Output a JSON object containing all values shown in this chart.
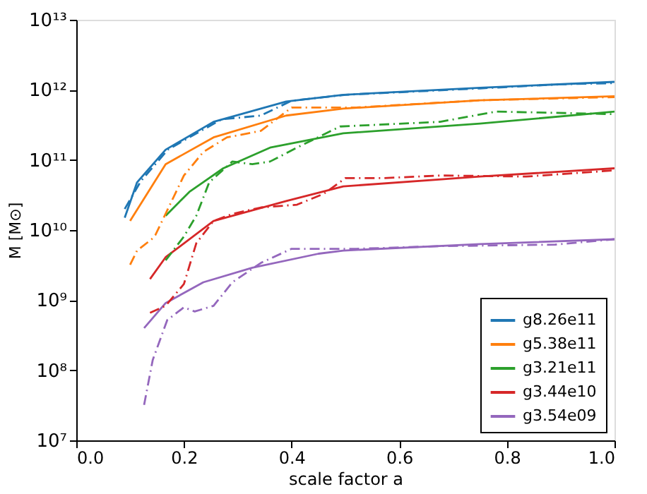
{
  "chart_data": {
    "type": "line",
    "xlabel": "scale factor a",
    "ylabel": "M [M⊙]",
    "log": "y",
    "grid": false,
    "legend": "bottom right",
    "marker": "none",
    "xlim": [
      0.0,
      1.0
    ],
    "xticks": [
      {
        "value": 0,
        "label": "0.0"
      },
      0.2,
      0.4,
      0.6,
      0.8,
      {
        "value": 1,
        "label": "1.0"
      }
    ],
    "ylim": [
      10000000.0,
      10000000000000.0
    ],
    "yticks": [
      {
        "value": 10000000.0,
        "label": "10⁷"
      },
      {
        "value": 100000000.0,
        "label": "10⁸"
      },
      {
        "value": 1000000000.0,
        "label": "10⁹"
      },
      {
        "value": 10000000000.0,
        "label": "10¹⁰"
      },
      {
        "value": 100000000000.0,
        "label": "10¹¹"
      },
      {
        "value": 1000000000000.0,
        "label": "10¹²"
      },
      {
        "value": 10000000000000.0,
        "label": "10¹³"
      }
    ],
    "series": [
      {
        "name": "g8.26e11",
        "color": "#1f77b4",
        "line_style": "solid",
        "x": [
          0.09,
          0.113,
          0.166,
          0.255,
          0.39,
          0.496,
          0.75,
          1.0
        ],
        "values": [
          15000000000.0,
          48000000000.0,
          140000000000.0,
          350000000000.0,
          680000000000.0,
          850000000000.0,
          1070000000000.0,
          1300000000000.0
        ]
      },
      {
        "name": "g5.38e11",
        "color": "#ff7f0e",
        "line_style": "solid",
        "x": [
          0.1,
          0.166,
          0.255,
          0.39,
          0.496,
          0.75,
          1.0
        ],
        "values": [
          13500000000.0,
          87000000000.0,
          210000000000.0,
          430000000000.0,
          540000000000.0,
          710000000000.0,
          810000000000.0
        ]
      },
      {
        "name": "g3.21e11",
        "color": "#2ca02c",
        "line_style": "solid",
        "x": [
          0.166,
          0.21,
          0.273,
          0.36,
          0.496,
          0.75,
          1.0
        ],
        "values": [
          16000000000.0,
          35000000000.0,
          76000000000.0,
          150000000000.0,
          240000000000.0,
          330000000000.0,
          490000000000.0
        ]
      },
      {
        "name": "g3.44e10",
        "color": "#d62728",
        "line_style": "solid",
        "x": [
          0.137,
          0.166,
          0.255,
          0.39,
          0.496,
          0.75,
          1.0
        ],
        "values": [
          2000000000.0,
          4100000000.0,
          13500000000.0,
          26000000000.0,
          42000000000.0,
          58000000000.0,
          76000000000.0
        ]
      },
      {
        "name": "g3.54e09",
        "color": "#9467bd",
        "line_style": "solid",
        "x": [
          0.126,
          0.166,
          0.236,
          0.327,
          0.45,
          0.496,
          0.75,
          1.0
        ],
        "values": [
          400000000.0,
          910000000.0,
          1800000000.0,
          2900000000.0,
          4600000000.0,
          5100000000.0,
          6300000000.0,
          7400000000.0
        ]
      },
      {
        "color": "#1f77b4",
        "line_style": "dashed",
        "x": [
          0.09,
          0.12,
          0.17,
          0.21,
          0.27,
          0.343,
          0.4,
          0.5,
          0.75,
          0.9,
          1.0
        ],
        "values": [
          20000000000.0,
          50000000000.0,
          140000000000.0,
          210000000000.0,
          380000000000.0,
          430000000000.0,
          700000000000.0,
          850000000000.0,
          1050000000000.0,
          1200000000000.0,
          1250000000000.0
        ]
      },
      {
        "color": "#ff7f0e",
        "line_style": "dashed",
        "x": [
          0.1,
          0.113,
          0.14,
          0.147,
          0.2,
          0.236,
          0.28,
          0.343,
          0.4,
          0.52,
          0.75,
          1.0
        ],
        "values": [
          3200000000.0,
          5100000000.0,
          7400000000.0,
          8500000000.0,
          60000000000.0,
          130000000000.0,
          210000000000.0,
          260000000000.0,
          560000000000.0,
          560000000000.0,
          710000000000.0,
          790000000000.0
        ]
      },
      {
        "color": "#2ca02c",
        "line_style": "dashed",
        "x": [
          0.166,
          0.2,
          0.223,
          0.247,
          0.29,
          0.327,
          0.36,
          0.41,
          0.49,
          0.676,
          0.78,
          0.89,
          1.0
        ],
        "values": [
          3700000000.0,
          8100000000.0,
          16000000000.0,
          48000000000.0,
          95000000000.0,
          87000000000.0,
          95000000000.0,
          150000000000.0,
          300000000000.0,
          350000000000.0,
          490000000000.0,
          470000000000.0,
          450000000000.0
        ]
      },
      {
        "color": "#d62728",
        "line_style": "dashed",
        "x": [
          0.137,
          0.166,
          0.2,
          0.223,
          0.255,
          0.29,
          0.343,
          0.41,
          0.46,
          0.5,
          0.57,
          0.676,
          0.836,
          1.0
        ],
        "values": [
          660000000.0,
          830000000.0,
          1700000000.0,
          6500000000.0,
          13500000000.0,
          17000000000.0,
          21000000000.0,
          23000000000.0,
          33000000000.0,
          55000000000.0,
          55000000000.0,
          60000000000.0,
          58000000000.0,
          71000000000.0
        ]
      },
      {
        "color": "#9467bd",
        "line_style": "dashed",
        "x": [
          0.126,
          0.142,
          0.169,
          0.2,
          0.22,
          0.255,
          0.29,
          0.343,
          0.4,
          0.52,
          0.676,
          0.89,
          1.0
        ],
        "values": [
          32000000.0,
          140000000.0,
          520000000.0,
          790000000.0,
          690000000.0,
          830000000.0,
          1800000000.0,
          3400000000.0,
          5400000000.0,
          5400000000.0,
          5900000000.0,
          6200000000.0,
          7400000000.0
        ]
      }
    ]
  }
}
